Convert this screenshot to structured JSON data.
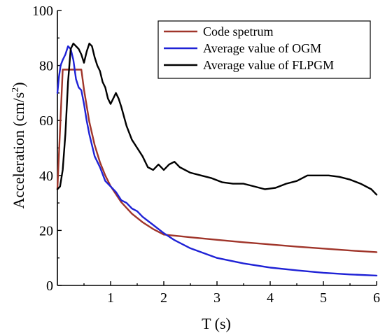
{
  "chart_data": {
    "type": "line",
    "xlabel": "T (s)",
    "ylabel_main": "Acceleration (cm/s",
    "ylabel_sup": "2",
    "ylabel_close": ")",
    "xlim": [
      0,
      6
    ],
    "ylim": [
      0,
      100
    ],
    "xticks": [
      1,
      2,
      3,
      4,
      5,
      6
    ],
    "yticks": [
      0,
      20,
      40,
      60,
      80,
      100
    ],
    "grid": false,
    "legend_position": "top-right",
    "series": [
      {
        "name": "Code spetrum",
        "color": "#a0352a",
        "x": [
          0.0,
          0.1,
          0.12,
          0.45,
          0.5,
          0.6,
          0.7,
          0.8,
          0.9,
          1.0,
          1.2,
          1.4,
          1.6,
          1.8,
          2.0,
          2.5,
          3.0,
          3.5,
          4.0,
          4.5,
          5.0,
          5.5,
          6.0
        ],
        "y": [
          35,
          78.5,
          78.5,
          78.5,
          71.2,
          59.5,
          51.1,
          44.8,
          40.0,
          36.1,
          30.3,
          26.1,
          23.0,
          20.5,
          18.5,
          17.5,
          16.6,
          15.7,
          14.9,
          14.1,
          13.4,
          12.7,
          12.1
        ]
      },
      {
        "name": "Average value of OGM",
        "color": "#1f22d6",
        "x": [
          0.0,
          0.03,
          0.06,
          0.1,
          0.15,
          0.2,
          0.25,
          0.3,
          0.35,
          0.4,
          0.45,
          0.5,
          0.55,
          0.6,
          0.7,
          0.8,
          0.9,
          1.0,
          1.1,
          1.2,
          1.3,
          1.4,
          1.5,
          1.6,
          1.8,
          2.0,
          2.2,
          2.5,
          3.0,
          3.5,
          4.0,
          4.5,
          5.0,
          5.5,
          6.0
        ],
        "y": [
          70,
          76,
          80,
          82,
          84,
          87,
          86,
          82,
          75,
          72,
          71,
          66,
          60,
          55,
          47,
          43,
          38,
          36,
          34,
          31,
          30,
          28,
          27,
          25,
          22,
          19,
          16.5,
          13.5,
          10,
          8,
          6.5,
          5.5,
          4.6,
          4.0,
          3.6
        ]
      },
      {
        "name": "Average value of FLPGM",
        "color": "#000000",
        "x": [
          0.0,
          0.05,
          0.1,
          0.15,
          0.2,
          0.25,
          0.3,
          0.35,
          0.4,
          0.45,
          0.5,
          0.55,
          0.6,
          0.65,
          0.7,
          0.75,
          0.8,
          0.85,
          0.9,
          0.95,
          1.0,
          1.05,
          1.1,
          1.15,
          1.2,
          1.3,
          1.4,
          1.5,
          1.6,
          1.7,
          1.8,
          1.9,
          2.0,
          2.1,
          2.2,
          2.3,
          2.5,
          2.7,
          2.9,
          3.1,
          3.3,
          3.5,
          3.7,
          3.9,
          4.1,
          4.3,
          4.5,
          4.7,
          4.9,
          5.1,
          5.3,
          5.5,
          5.7,
          5.9,
          6.0
        ],
        "y": [
          35,
          36,
          42,
          55,
          74,
          86,
          88,
          87,
          86,
          84,
          81,
          85,
          88,
          87,
          83,
          80,
          78,
          74,
          72,
          68,
          66,
          68,
          70,
          68,
          65,
          58,
          53,
          50,
          47,
          43,
          42,
          44,
          42,
          44,
          45,
          43,
          41,
          40,
          39,
          37.5,
          37,
          37,
          36,
          35,
          35.5,
          37,
          38,
          40,
          40,
          40,
          39.5,
          38.5,
          37,
          35,
          33
        ]
      }
    ]
  }
}
